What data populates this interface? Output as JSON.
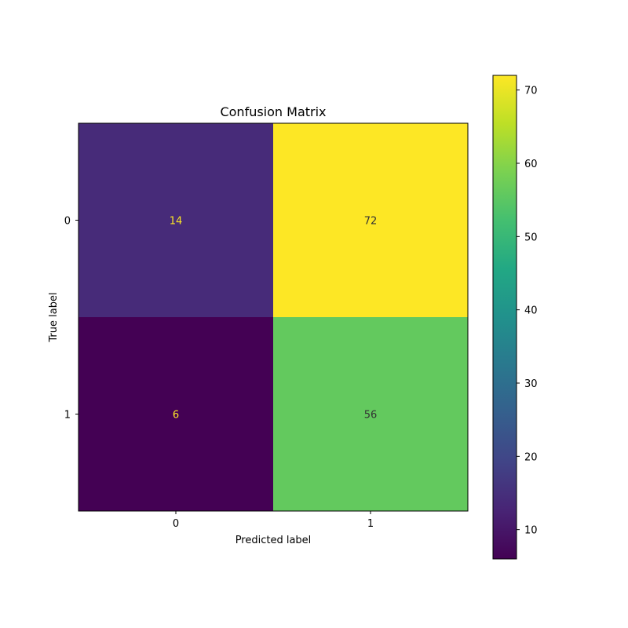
{
  "chart_data": {
    "type": "heatmap",
    "title": "Confusion Matrix",
    "xlabel": "Predicted label",
    "ylabel": "True label",
    "x_categories": [
      "0",
      "1"
    ],
    "y_categories": [
      "0",
      "1"
    ],
    "values": [
      [
        14,
        72
      ],
      [
        6,
        56
      ]
    ],
    "colormap": "viridis",
    "colorbar": {
      "range": [
        6,
        72
      ],
      "ticks": [
        10,
        20,
        30,
        40,
        50,
        60,
        70
      ]
    },
    "text_colors": {
      "dark_cell": "#fde725",
      "light_cell": "#333333"
    },
    "grid": false
  }
}
